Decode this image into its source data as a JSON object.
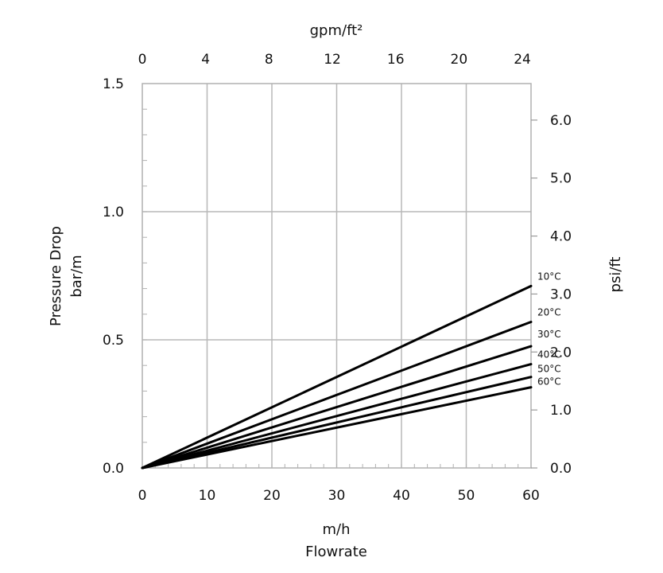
{
  "chart_data": {
    "type": "line",
    "xlabel_unit": "m/h",
    "xlabel": "Flowrate",
    "x_ticks": [
      "0",
      "10",
      "20",
      "30",
      "40",
      "50",
      "60"
    ],
    "xlim": [
      0,
      60
    ],
    "x2label": "gpm/ft²",
    "x2_ticks": [
      "0",
      "4",
      "8",
      "12",
      "16",
      "20",
      "24"
    ],
    "x2lim": [
      0,
      24.55
    ],
    "ylabel": "Pressure Drop",
    "ylabel_unit": "bar/m",
    "y_ticks": [
      "0.0",
      "0.5",
      "1.0",
      "1.5"
    ],
    "ylim": [
      0,
      1.5
    ],
    "y2label": "psi/ft",
    "y2_ticks": [
      "0.0",
      "1.0",
      "2.0",
      "3.0",
      "4.0",
      "5.0",
      "6.0"
    ],
    "y2lim": [
      0,
      6.63
    ],
    "grid": true,
    "line_color": "#000000",
    "series": [
      {
        "name": "10°C",
        "x": [
          0,
          60
        ],
        "y": [
          0,
          0.71
        ]
      },
      {
        "name": "20°C",
        "x": [
          0,
          60
        ],
        "y": [
          0,
          0.57
        ]
      },
      {
        "name": "30°C",
        "x": [
          0,
          60
        ],
        "y": [
          0,
          0.475
        ]
      },
      {
        "name": "40°C",
        "x": [
          0,
          60
        ],
        "y": [
          0,
          0.405
        ]
      },
      {
        "name": "50°C",
        "x": [
          0,
          60
        ],
        "y": [
          0,
          0.355
        ]
      },
      {
        "name": "60°C",
        "x": [
          0,
          60
        ],
        "y": [
          0,
          0.315
        ]
      }
    ]
  }
}
